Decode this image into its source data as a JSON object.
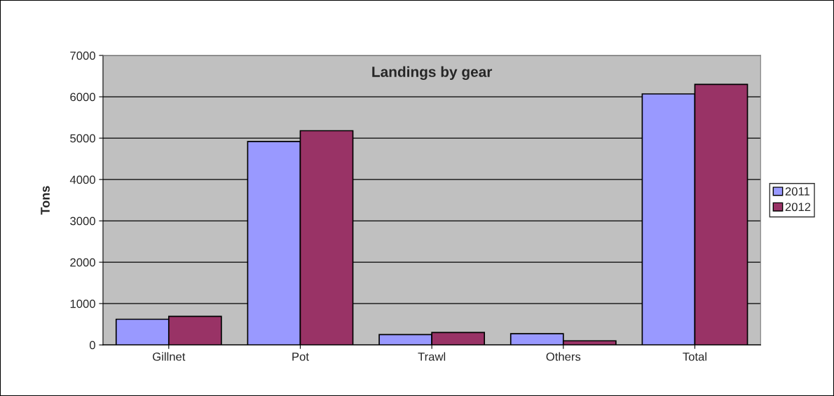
{
  "chart_data": {
    "type": "bar",
    "title": "Landings by gear",
    "ylabel": "Tons",
    "categories": [
      "Gillnet",
      "Pot",
      "Trawl",
      "Others",
      "Total"
    ],
    "series": [
      {
        "name": "2011",
        "color": "#9999ff",
        "values": [
          620,
          4920,
          250,
          270,
          6070
        ]
      },
      {
        "name": "2012",
        "color": "#993366",
        "values": [
          690,
          5180,
          300,
          100,
          6300
        ]
      }
    ],
    "ylim": [
      0,
      7000
    ],
    "yticks": [
      0,
      1000,
      2000,
      3000,
      4000,
      5000,
      6000,
      7000
    ],
    "grid": "y",
    "legend": "right"
  }
}
